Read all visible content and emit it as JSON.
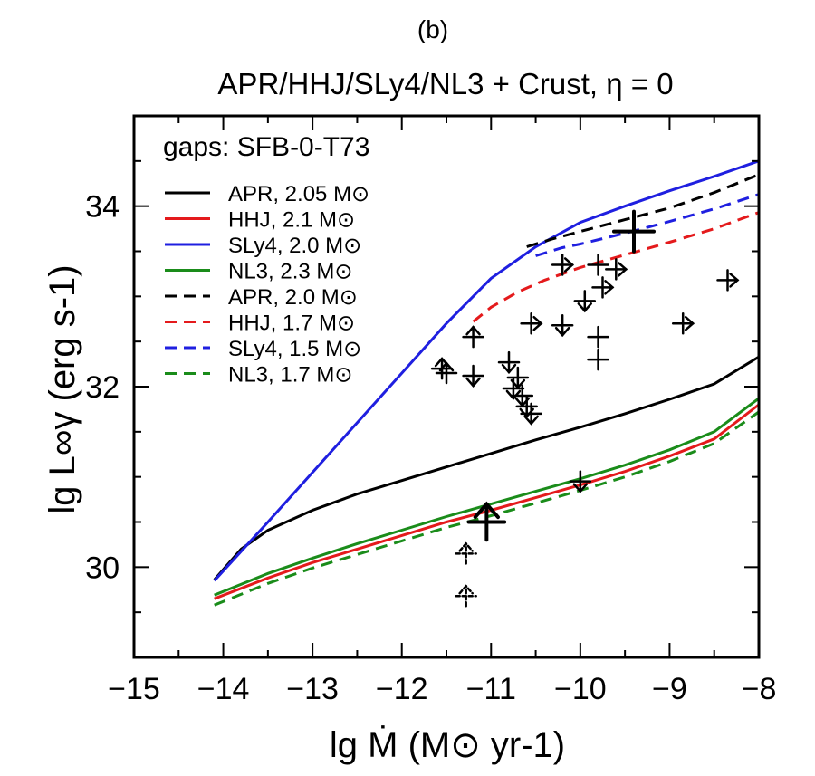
{
  "chart_data": {
    "type": "line",
    "panel_label": "(b)",
    "title": "APR/HHJ/SLy4/NL3 + Crust, η = 0",
    "xlabel": "lg Ṁ (M⊙ yr-1)",
    "ylabel": "lg L∞γ (erg s-1)",
    "xlim": [
      -15,
      -8
    ],
    "ylim": [
      29,
      35
    ],
    "x_ticks": [
      "−15",
      "−14",
      "−13",
      "−12",
      "−11",
      "−10",
      "−9",
      "−8"
    ],
    "y_ticks": [
      "30",
      "32",
      "34"
    ],
    "grid": false,
    "legend_title": "gaps: SFB-0-T73",
    "legend_position": "top-left",
    "series": [
      {
        "name": "APR, 2.05 M⊙",
        "color": "#000000",
        "dash": "solid",
        "points": [
          [
            -14.1,
            29.86
          ],
          [
            -13.8,
            30.2
          ],
          [
            -13.5,
            30.41
          ],
          [
            -13,
            30.63
          ],
          [
            -12.5,
            30.81
          ],
          [
            -12,
            30.96
          ],
          [
            -11.5,
            31.11
          ],
          [
            -11,
            31.26
          ],
          [
            -10.5,
            31.41
          ],
          [
            -10,
            31.55
          ],
          [
            -9.5,
            31.7
          ],
          [
            -9,
            31.86
          ],
          [
            -8.5,
            32.03
          ],
          [
            -8,
            32.33
          ]
        ]
      },
      {
        "name": "HHJ, 2.1 M⊙",
        "color": "#e41a1c",
        "dash": "solid",
        "points": [
          [
            -14.1,
            29.65
          ],
          [
            -13.5,
            29.88
          ],
          [
            -13,
            30.05
          ],
          [
            -12.5,
            30.2
          ],
          [
            -12,
            30.35
          ],
          [
            -11.5,
            30.5
          ],
          [
            -11,
            30.63
          ],
          [
            -10.5,
            30.77
          ],
          [
            -10,
            30.91
          ],
          [
            -9.5,
            31.06
          ],
          [
            -9,
            31.23
          ],
          [
            -8.5,
            31.42
          ],
          [
            -8,
            31.8
          ]
        ]
      },
      {
        "name": "SLy4, 2.0 M⊙",
        "color": "#1f1fe0",
        "dash": "solid",
        "points": [
          [
            -14.1,
            29.85
          ],
          [
            -13.5,
            30.5
          ],
          [
            -13,
            31.05
          ],
          [
            -12.5,
            31.6
          ],
          [
            -12,
            32.15
          ],
          [
            -11.5,
            32.7
          ],
          [
            -11,
            33.2
          ],
          [
            -10.5,
            33.55
          ],
          [
            -10,
            33.82
          ],
          [
            -9.5,
            34.0
          ],
          [
            -9,
            34.17
          ],
          [
            -8.5,
            34.33
          ],
          [
            -8,
            34.5
          ]
        ]
      },
      {
        "name": "NL3, 2.3 M⊙",
        "color": "#1a8c1a",
        "dash": "solid",
        "points": [
          [
            -14.1,
            29.69
          ],
          [
            -13.5,
            29.93
          ],
          [
            -13,
            30.1
          ],
          [
            -12.5,
            30.26
          ],
          [
            -12,
            30.41
          ],
          [
            -11.5,
            30.56
          ],
          [
            -11,
            30.7
          ],
          [
            -10.5,
            30.84
          ],
          [
            -10,
            30.98
          ],
          [
            -9.5,
            31.13
          ],
          [
            -9,
            31.3
          ],
          [
            -8.5,
            31.5
          ],
          [
            -8,
            31.87
          ]
        ]
      },
      {
        "name": "APR, 2.0 M⊙",
        "color": "#000000",
        "dash": "dashed",
        "points": [
          [
            -10.6,
            33.55
          ],
          [
            -10.3,
            33.64
          ],
          [
            -10,
            33.72
          ],
          [
            -9.5,
            33.85
          ],
          [
            -9,
            33.98
          ],
          [
            -8.5,
            34.15
          ],
          [
            -8,
            34.35
          ]
        ]
      },
      {
        "name": "HHJ, 1.7 M⊙",
        "color": "#e41a1c",
        "dash": "dashed",
        "points": [
          [
            -11.2,
            32.72
          ],
          [
            -11,
            32.88
          ],
          [
            -10.7,
            33.05
          ],
          [
            -10.4,
            33.18
          ],
          [
            -10,
            33.32
          ],
          [
            -9.5,
            33.46
          ],
          [
            -9,
            33.6
          ],
          [
            -8.5,
            33.75
          ],
          [
            -8,
            33.93
          ]
        ]
      },
      {
        "name": "SLy4, 1.5 M⊙",
        "color": "#1f1fe0",
        "dash": "dashed",
        "points": [
          [
            -10.5,
            33.45
          ],
          [
            -10.2,
            33.54
          ],
          [
            -10,
            33.58
          ],
          [
            -9.5,
            33.7
          ],
          [
            -9,
            33.83
          ],
          [
            -8.5,
            33.97
          ],
          [
            -8,
            34.13
          ]
        ]
      },
      {
        "name": "NL3, 1.7 M⊙",
        "color": "#1a8c1a",
        "dash": "dashed",
        "points": [
          [
            -14.1,
            29.58
          ],
          [
            -13.5,
            29.82
          ],
          [
            -13,
            29.99
          ],
          [
            -12.5,
            30.14
          ],
          [
            -12,
            30.29
          ],
          [
            -11.5,
            30.44
          ],
          [
            -11,
            30.57
          ],
          [
            -10.5,
            30.71
          ],
          [
            -10,
            30.85
          ],
          [
            -9.5,
            31.0
          ],
          [
            -9,
            31.17
          ],
          [
            -8.5,
            31.37
          ],
          [
            -8,
            31.72
          ]
        ]
      }
    ],
    "observations": [
      {
        "x": -11.55,
        "y": 32.2,
        "type": "up-arrow"
      },
      {
        "x": -11.5,
        "y": 32.15,
        "type": "up-arrow"
      },
      {
        "x": -11.2,
        "y": 32.55,
        "type": "up-arrow"
      },
      {
        "x": -11.2,
        "y": 32.12,
        "type": "down-arrow"
      },
      {
        "x": -10.8,
        "y": 32.27,
        "type": "down-arrow"
      },
      {
        "x": -10.7,
        "y": 32.1,
        "type": "down-arrow"
      },
      {
        "x": -10.75,
        "y": 31.98,
        "type": "down-arrow"
      },
      {
        "x": -10.65,
        "y": 31.9,
        "type": "down-arrow"
      },
      {
        "x": -10.6,
        "y": 31.78,
        "type": "down-arrow"
      },
      {
        "x": -10.55,
        "y": 31.7,
        "type": "down-arrow"
      },
      {
        "x": -10.55,
        "y": 32.7,
        "type": "right-arrow"
      },
      {
        "x": -10.2,
        "y": 32.68,
        "type": "down-arrow"
      },
      {
        "x": -10.2,
        "y": 33.35,
        "type": "right-arrow"
      },
      {
        "x": -9.95,
        "y": 32.95,
        "type": "down-arrow"
      },
      {
        "x": -9.8,
        "y": 33.35,
        "type": "cross"
      },
      {
        "x": -9.75,
        "y": 33.1,
        "type": "right-arrow"
      },
      {
        "x": -9.6,
        "y": 33.3,
        "type": "right-arrow"
      },
      {
        "x": -9.8,
        "y": 32.55,
        "type": "cross"
      },
      {
        "x": -9.8,
        "y": 32.3,
        "type": "cross"
      },
      {
        "x": -9.4,
        "y": 33.72,
        "type": "cross-large"
      },
      {
        "x": -8.85,
        "y": 32.7,
        "type": "right-arrow"
      },
      {
        "x": -8.35,
        "y": 33.18,
        "type": "right-arrow"
      },
      {
        "x": -10.0,
        "y": 30.95,
        "type": "down-arrow"
      },
      {
        "x": -11.05,
        "y": 30.5,
        "type": "up-arrow-large"
      },
      {
        "x": -11.28,
        "y": 30.15,
        "type": "dashed-up-arrow"
      },
      {
        "x": -11.28,
        "y": 29.68,
        "type": "dashed-up-arrow"
      }
    ]
  }
}
